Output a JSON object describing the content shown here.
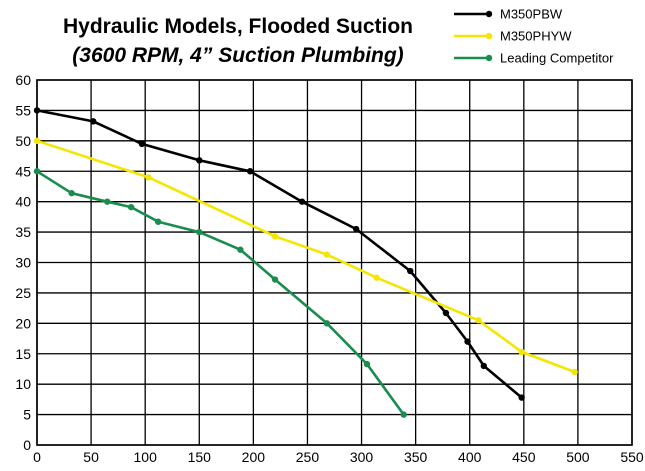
{
  "chart_data": {
    "type": "line",
    "title": "Hydraulic Models, Flooded Suction",
    "subtitle": "(3600 RPM, 4” Suction Plumbing)",
    "xlabel": "",
    "ylabel": "",
    "xlim": [
      0,
      550
    ],
    "ylim": [
      0,
      60
    ],
    "x_ticks": [
      0,
      50,
      100,
      150,
      200,
      250,
      300,
      350,
      400,
      450,
      500,
      550
    ],
    "y_ticks": [
      0,
      5,
      10,
      15,
      20,
      25,
      30,
      35,
      40,
      45,
      50,
      55,
      60
    ],
    "grid": true,
    "legend_position": "top-right",
    "series": [
      {
        "name": "M350PBW",
        "color": "#000000",
        "points": [
          [
            0,
            55
          ],
          [
            52,
            53.2
          ],
          [
            97,
            49.5
          ],
          [
            150,
            46.8
          ],
          [
            197,
            45
          ],
          [
            245,
            40
          ],
          [
            295,
            35.5
          ],
          [
            345,
            28.6
          ],
          [
            378,
            21.7
          ],
          [
            398,
            17
          ],
          [
            413,
            13
          ],
          [
            448,
            7.8
          ]
        ]
      },
      {
        "name": "M350PHYW",
        "color": "#f5e600",
        "points": [
          [
            0,
            50
          ],
          [
            103,
            44
          ],
          [
            220,
            34.3
          ],
          [
            268,
            31.3
          ],
          [
            314,
            27.5
          ],
          [
            408,
            20.5
          ],
          [
            448,
            15.3
          ],
          [
            497,
            12
          ]
        ]
      },
      {
        "name": "Leading Competitor",
        "color": "#198c4e",
        "points": [
          [
            0,
            45
          ],
          [
            32,
            41.4
          ],
          [
            65,
            40
          ],
          [
            87,
            39.1
          ],
          [
            112,
            36.7
          ],
          [
            150,
            35
          ],
          [
            188,
            32.1
          ],
          [
            220,
            27.2
          ],
          [
            268,
            20
          ],
          [
            305,
            13.3
          ],
          [
            339,
            5
          ]
        ]
      }
    ]
  }
}
